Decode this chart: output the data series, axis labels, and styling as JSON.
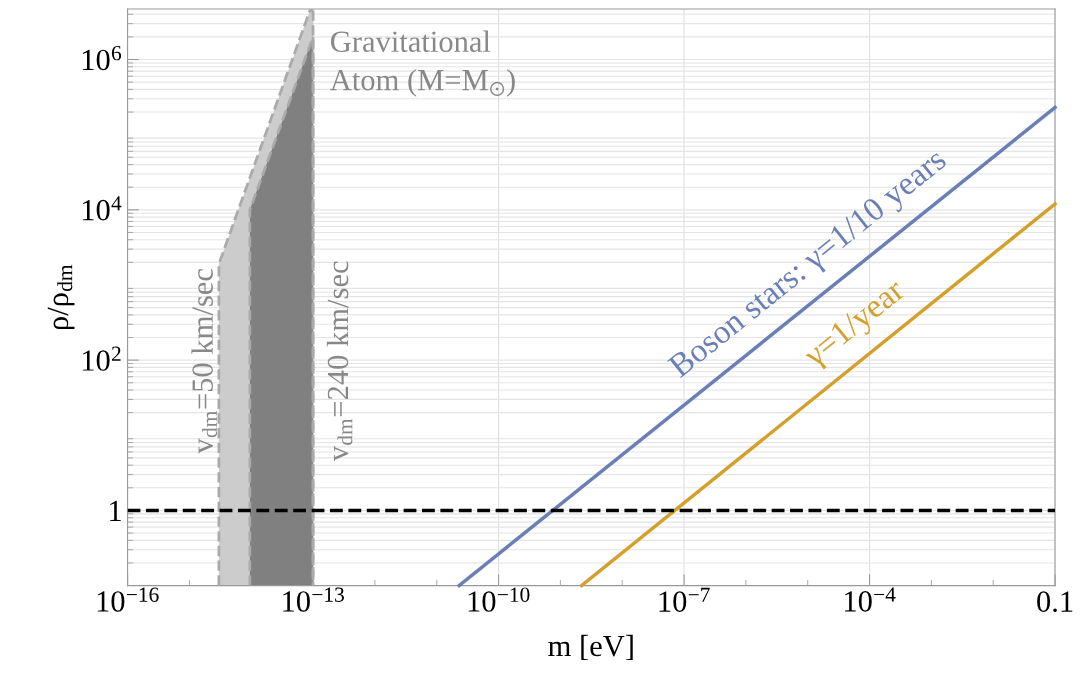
{
  "chart_data": {
    "type": "line",
    "xlabel": "m [eV]",
    "ylabel": "ρ/ρ$_{dm}$",
    "log": "xy",
    "grid": true,
    "xlim": [
      1e-16,
      0.1
    ],
    "ylim": [
      0.1,
      4700000.0
    ],
    "xticks": [
      {
        "value": 1e-16,
        "label": "10$^{−16}$"
      },
      {
        "value": 1e-13,
        "label": "10$^{−13}$"
      },
      {
        "value": 1e-10,
        "label": "10$^{−10}$"
      },
      {
        "value": 1e-07,
        "label": "10$^{−7}$"
      },
      {
        "value": 0.0001,
        "label": "10$^{−4}$"
      },
      {
        "value": 0.1,
        "label": "0.1"
      }
    ],
    "yticks": [
      1,
      {
        "value": 100,
        "label": "10$^{2}$"
      },
      {
        "value": 10000,
        "label": "10$^{4}$"
      },
      {
        "value": 1000000,
        "label": "10$^{6}$"
      }
    ],
    "series": [
      {
        "type": "area",
        "color": "#cccccc",
        "line_style": "dashed",
        "x": [
          3e-15,
          3e-15,
          8.9e-14,
          1e-13
        ],
        "values": [
          0.1,
          1900,
          4500000.0,
          4500000.0
        ]
      },
      {
        "type": "area",
        "color": "#808080",
        "line_style": "dashed",
        "x": [
          9.5e-15,
          9.5e-15,
          1e-13
        ],
        "values": [
          0.1,
          10000,
          2000000.0
        ]
      },
      {
        "name": "Boson stars: γ=1/10 years",
        "color": "#6a7fb6",
        "x": [
          2.3e-11,
          0.1
        ],
        "values": [
          0.1,
          230000.0
        ]
      },
      {
        "name": "γ=1/year",
        "color": "#d4a02c",
        "x": [
          2.2e-09,
          0.1
        ],
        "values": [
          0.1,
          12000.0
        ]
      }
    ],
    "ref_lines": [
      {
        "axis": "y",
        "value": 1,
        "color": "#000000",
        "line_style": "dashed"
      }
    ],
    "annotations": [
      "Gravitational\nAtom (M=M$_{⊙}$)",
      "v$_{dm}$=50 km/sec",
      "v$_{dm}$=240 km/sec"
    ]
  }
}
